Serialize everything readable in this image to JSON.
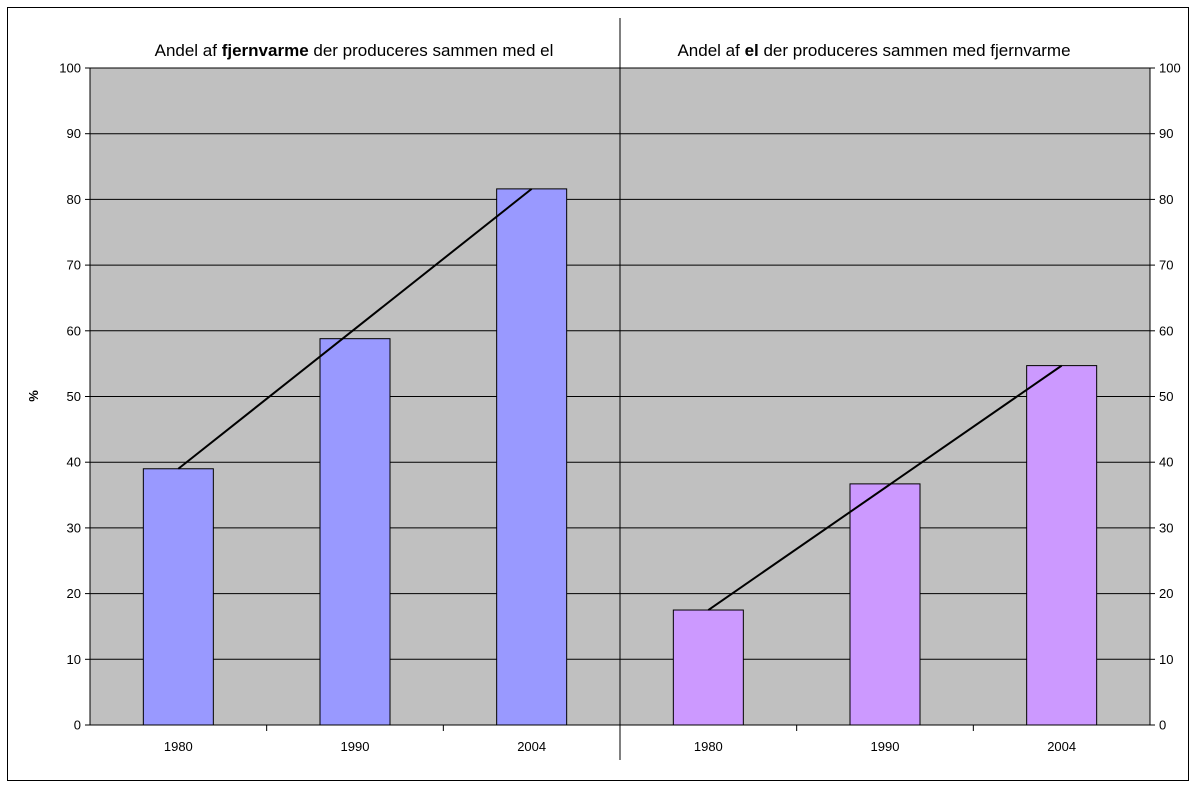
{
  "chart_data": {
    "type": "bar",
    "categories": [
      "1980",
      "1990",
      "2004"
    ],
    "ylim": [
      0,
      100
    ],
    "y_ticks": [
      "0",
      "10",
      "20",
      "30",
      "40",
      "50",
      "60",
      "70",
      "80",
      "90",
      "100"
    ],
    "ylabel": "%",
    "grid": true,
    "panels": [
      {
        "title_prefix": "Andel af ",
        "title_bold": "fjernvarme",
        "title_suffix": " der produceres sammen med el",
        "values": [
          39,
          58.8,
          81.6
        ],
        "color": "#9999ff"
      },
      {
        "title_prefix": "Andel af ",
        "title_bold": "el",
        "title_suffix": " der produceres sammen med fjernvarme",
        "values": [
          17.5,
          36.7,
          54.7
        ],
        "color": "#cc99ff"
      }
    ],
    "plot_background": "#c0c0c0",
    "line_color": "#000000"
  }
}
